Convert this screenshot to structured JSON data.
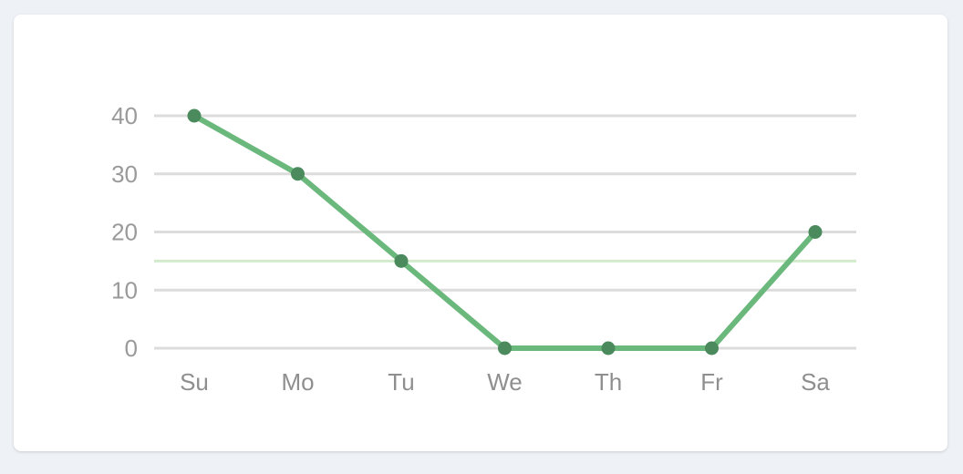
{
  "chart_data": {
    "type": "line",
    "categories": [
      "Su",
      "Mo",
      "Tu",
      "We",
      "Th",
      "Fr",
      "Sa"
    ],
    "series": [
      {
        "values": [
          40,
          30,
          15,
          0,
          0,
          0,
          20
        ]
      }
    ],
    "ylim": [
      0,
      40
    ],
    "yticks": [
      0,
      10,
      20,
      30,
      40
    ],
    "reference_line": 15,
    "grid": true,
    "legend": "none",
    "colors": {
      "line": "#6bb87c",
      "point": "#4a8a5c",
      "grid": "#dcdcdc",
      "reference": "#d2ebcc"
    }
  }
}
